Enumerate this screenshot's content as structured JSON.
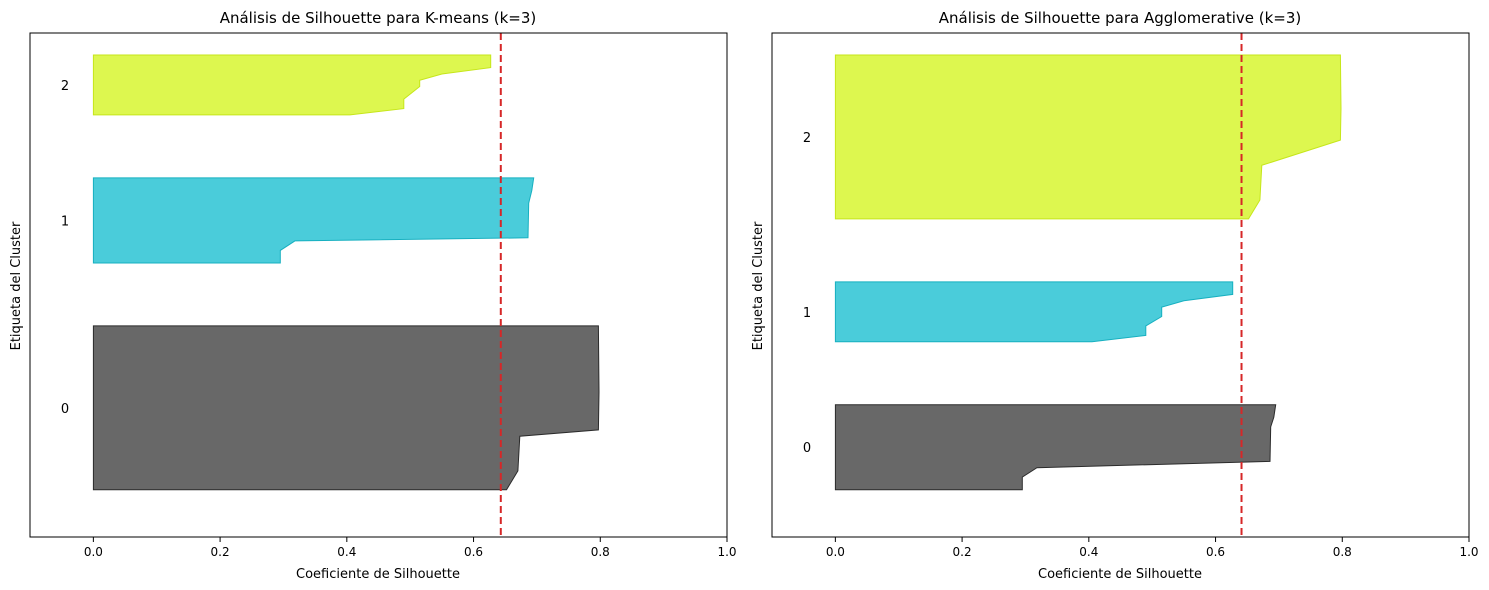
{
  "chart_data": [
    {
      "type": "silhouette",
      "title": "Análisis de Silhouette para K-means (k=3)",
      "xlabel": "Coeficiente de Silhouette",
      "ylabel": "Etiqueta del Cluster",
      "xlim": [
        -0.1,
        1.0
      ],
      "xticks": [
        "0.0",
        "0.2",
        "0.4",
        "0.6",
        "0.8",
        "1.0"
      ],
      "average_line": 0.643,
      "average_line_color": "#d62728",
      "clusters": [
        {
          "label": "0",
          "color": "#3d3d3d",
          "edge": "#2b2b2b",
          "y_range": [
            7.5,
            33.5
          ],
          "profile": [
            [
              7.5,
              0.652
            ],
            [
              10.5,
              0.67
            ],
            [
              16.0,
              0.673
            ],
            [
              17.0,
              0.797
            ],
            [
              23.0,
              0.798
            ],
            [
              33.5,
              0.797
            ]
          ]
        },
        {
          "label": "1",
          "color": "#17becf",
          "edge": "#17b0c0",
          "y_range": [
            43.5,
            57.0
          ],
          "profile": [
            [
              43.5,
              0.295
            ],
            [
              45.5,
              0.295
            ],
            [
              47.0,
              0.318
            ],
            [
              47.5,
              0.686
            ],
            [
              53.0,
              0.687
            ],
            [
              55.0,
              0.692
            ],
            [
              57.0,
              0.695
            ]
          ]
        },
        {
          "label": "2",
          "color": "#d4f51e",
          "edge": "#c6e61a",
          "y_range": [
            67.0,
            76.5
          ],
          "profile": [
            [
              67.0,
              0.405
            ],
            [
              68.0,
              0.49
            ],
            [
              69.5,
              0.49
            ],
            [
              71.5,
              0.515
            ],
            [
              72.5,
              0.515
            ],
            [
              73.5,
              0.55
            ],
            [
              74.5,
              0.627
            ],
            [
              76.5,
              0.627
            ]
          ]
        }
      ]
    },
    {
      "type": "silhouette",
      "title": "Análisis de Silhouette para Agglomerative (k=3)",
      "xlabel": "Coeficiente de Silhouette",
      "ylabel": "Etiqueta del Cluster",
      "xlim": [
        -0.1,
        1.0
      ],
      "xticks": [
        "0.0",
        "0.2",
        "0.4",
        "0.6",
        "0.8",
        "1.0"
      ],
      "average_line": 0.641,
      "average_line_color": "#d62728",
      "clusters": [
        {
          "label": "0",
          "color": "#3d3d3d",
          "edge": "#2b2b2b",
          "y_range": [
            7.5,
            21.0
          ],
          "profile": [
            [
              7.5,
              0.295
            ],
            [
              9.5,
              0.295
            ],
            [
              11.0,
              0.318
            ],
            [
              12.0,
              0.686
            ],
            [
              17.5,
              0.687
            ],
            [
              19.0,
              0.692
            ],
            [
              21.0,
              0.695
            ]
          ]
        },
        {
          "label": "1",
          "color": "#17becf",
          "edge": "#17b0c0",
          "y_range": [
            31.0,
            40.5
          ],
          "profile": [
            [
              31.0,
              0.405
            ],
            [
              32.0,
              0.49
            ],
            [
              33.5,
              0.49
            ],
            [
              35.0,
              0.515
            ],
            [
              36.5,
              0.515
            ],
            [
              37.5,
              0.55
            ],
            [
              38.5,
              0.627
            ],
            [
              40.5,
              0.627
            ]
          ]
        },
        {
          "label": "2",
          "color": "#d4f51e",
          "edge": "#c6e61a",
          "y_range": [
            50.5,
            76.5
          ],
          "profile": [
            [
              50.5,
              0.652
            ],
            [
              53.5,
              0.67
            ],
            [
              59.0,
              0.673
            ],
            [
              63.0,
              0.797
            ],
            [
              68.0,
              0.798
            ],
            [
              76.5,
              0.797
            ]
          ]
        }
      ]
    }
  ]
}
